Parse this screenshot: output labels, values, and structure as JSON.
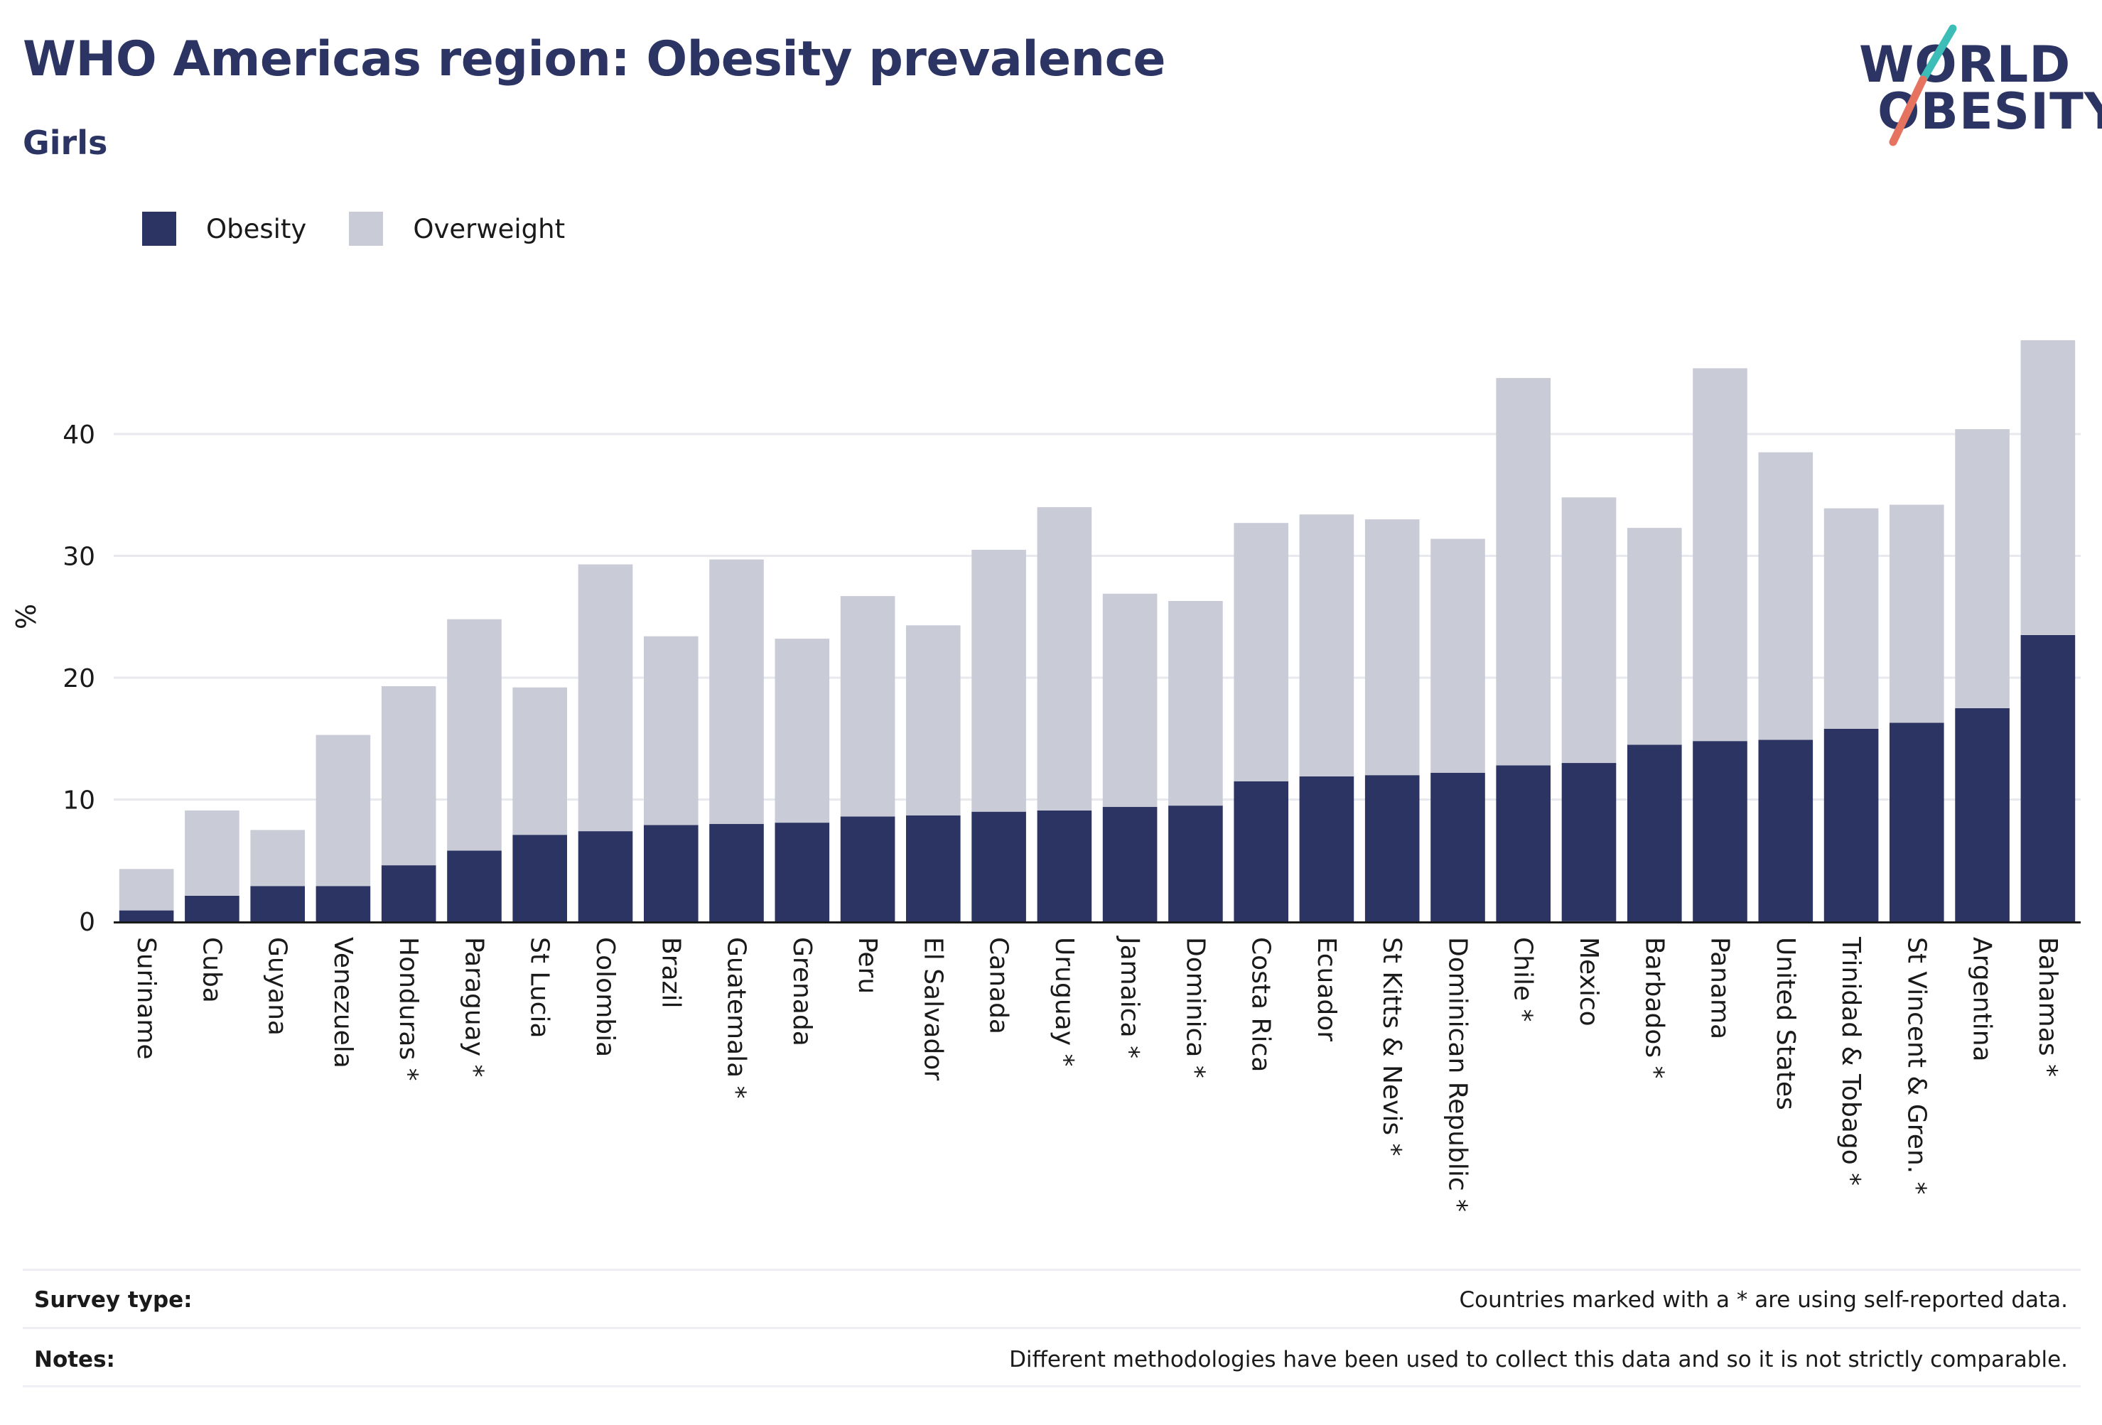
{
  "header": {
    "title": "WHO Americas region: Obesity prevalence",
    "subtitle": "Girls"
  },
  "logo": {
    "line1": "WORLD",
    "line2": "OBESITY",
    "brand_color": "#2b3462",
    "accent_colors": [
      "#3dbdb8",
      "#e5735f"
    ]
  },
  "legend": {
    "items": [
      {
        "label": "Obesity",
        "color": "#2b3462"
      },
      {
        "label": "Overweight",
        "color": "#c9cbd6"
      }
    ]
  },
  "chart_data": {
    "type": "bar",
    "stacked": true,
    "title": "WHO Americas region: Obesity prevalence",
    "subtitle": "Girls",
    "xlabel": "",
    "ylabel": "%",
    "ylim": [
      0,
      50
    ],
    "yticks": [
      0,
      10,
      20,
      30,
      40
    ],
    "grid": true,
    "legend_position": "top-left",
    "categories": [
      "Suriname",
      "Cuba",
      "Guyana",
      "Venezuela",
      "Honduras *",
      "Paraguay *",
      "St Lucia",
      "Colombia",
      "Brazil",
      "Guatemala *",
      "Grenada",
      "Peru",
      "El Salvador",
      "Canada",
      "Uruguay *",
      "Jamaica *",
      "Dominica *",
      "Costa Rica",
      "Ecuador",
      "St Kitts & Nevis *",
      "Dominican Republic *",
      "Chile *",
      "Mexico",
      "Barbados *",
      "Panama",
      "United States",
      "Trinidad & Tobago *",
      "St Vincent & Gren. *",
      "Argentina",
      "Bahamas *"
    ],
    "series": [
      {
        "name": "Obesity",
        "color": "#2b3462",
        "values": [
          0.9,
          2.1,
          2.9,
          2.9,
          4.6,
          5.8,
          7.1,
          7.4,
          7.9,
          8.0,
          8.1,
          8.6,
          8.7,
          9.0,
          9.1,
          9.4,
          9.5,
          11.5,
          11.9,
          12.0,
          12.2,
          12.8,
          13.0,
          14.5,
          14.8,
          14.9,
          15.8,
          16.3,
          17.5,
          23.5
        ]
      },
      {
        "name": "Overweight",
        "color": "#c9cbd6",
        "values": [
          3.4,
          7.0,
          4.6,
          12.4,
          14.7,
          19.0,
          12.1,
          21.9,
          15.5,
          21.7,
          15.1,
          18.1,
          15.6,
          21.5,
          24.9,
          17.5,
          16.8,
          21.2,
          21.5,
          21.0,
          19.2,
          31.8,
          21.8,
          17.8,
          30.6,
          23.6,
          18.1,
          17.9,
          22.9,
          24.2
        ]
      }
    ]
  },
  "footer": {
    "survey_label": "Survey type:",
    "survey_value": "Countries marked with a * are using self-reported data.",
    "notes_label": "Notes:",
    "notes_value": "Different methodologies have been used to collect this data and so it is not strictly comparable."
  }
}
